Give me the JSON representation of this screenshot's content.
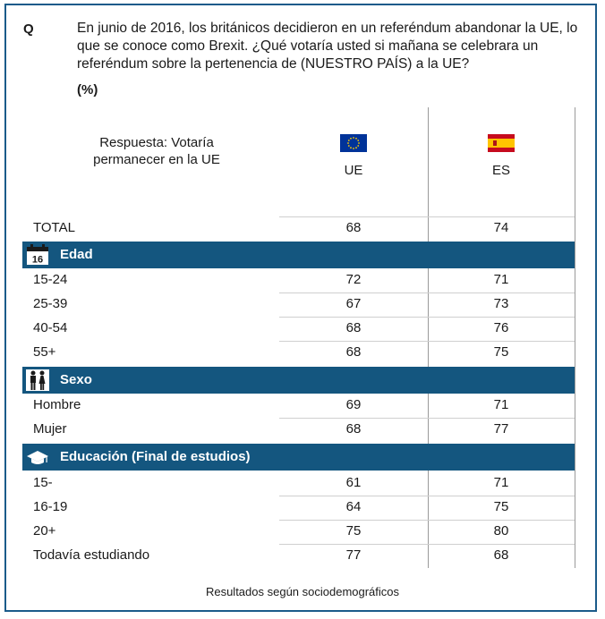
{
  "question": {
    "label": "Q",
    "text": "En junio de 2016, los británicos decidieron en un referéndum abandonar la UE, lo que se conoce como Brexit. ¿Qué votaría usted si mañana se celebrara un referéndum sobre la pertenencia de (NUESTRO PAÍS) a la UE?",
    "unit": "(%)"
  },
  "header": {
    "response_label": "Respuesta: Votaría permanecer en la UE",
    "columns": [
      {
        "label": "UE",
        "flag": "eu-flag-icon"
      },
      {
        "label": "ES",
        "flag": "spain-flag-icon"
      }
    ]
  },
  "total": {
    "label": "TOTAL",
    "values": [
      "68",
      "74"
    ]
  },
  "sections": [
    {
      "title": "Edad",
      "icon": "calendar-icon",
      "icon_text": "16",
      "rows": [
        {
          "label": "15-24",
          "values": [
            "72",
            "71"
          ]
        },
        {
          "label": "25-39",
          "values": [
            "67",
            "73"
          ]
        },
        {
          "label": "40-54",
          "values": [
            "68",
            "76"
          ]
        },
        {
          "label": "55+",
          "values": [
            "68",
            "75"
          ]
        }
      ]
    },
    {
      "title": "Sexo",
      "icon": "man-woman-icon",
      "rows": [
        {
          "label": "Hombre",
          "values": [
            "69",
            "71"
          ]
        },
        {
          "label": "Mujer",
          "values": [
            "68",
            "77"
          ]
        }
      ]
    },
    {
      "title": "Educación (Final de estudios)",
      "icon": "graduation-cap-icon",
      "rows": [
        {
          "label": "15-",
          "values": [
            "61",
            "71"
          ]
        },
        {
          "label": "16-19",
          "values": [
            "64",
            "75"
          ]
        },
        {
          "label": "20+",
          "values": [
            "75",
            "80"
          ]
        },
        {
          "label": "Todavía estudiando",
          "values": [
            "77",
            "68"
          ]
        }
      ]
    }
  ],
  "footer": "Resultados según sociodemográficos",
  "colors": {
    "section_bg": "#14567f",
    "frame": "#1b5b8a",
    "eu_blue": "#003399",
    "eu_star": "#ffcc00",
    "es_red": "#c60b1e",
    "es_yellow": "#ffc400"
  }
}
